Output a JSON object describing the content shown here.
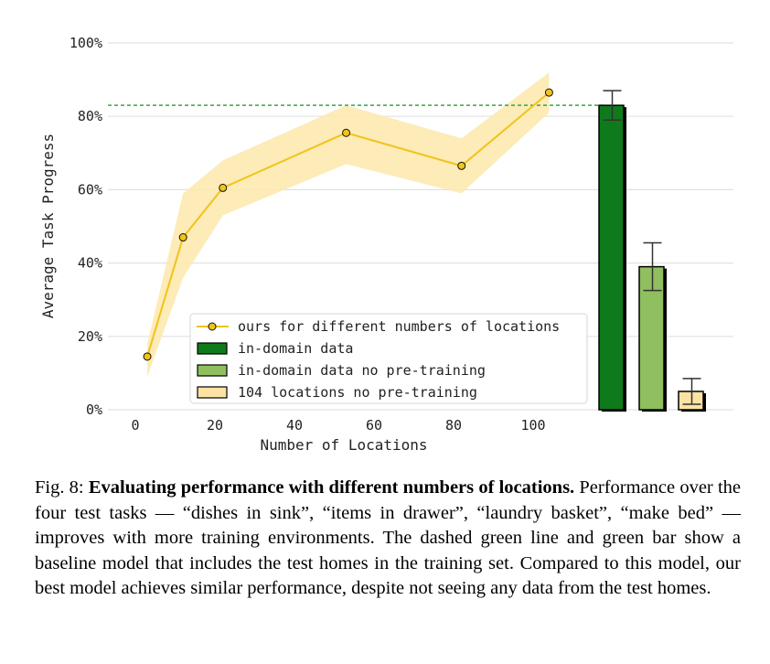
{
  "chart_data": {
    "type": "line",
    "xlabel": "Number of Locations",
    "ylabel": "Average Task Progress",
    "xlim": [
      -4,
      114
    ],
    "ylim": [
      0,
      100
    ],
    "x_ticks": [
      "0",
      "20",
      "40",
      "60",
      "80",
      "100"
    ],
    "y_ticks": [
      "0%",
      "20%",
      "40%",
      "60%",
      "80%",
      "100%"
    ],
    "grid": true,
    "legend_position": "bottom-right",
    "line_series": {
      "name": "ours for different numbers of locations",
      "color": "#f0c419",
      "band_color": "#fde9b0",
      "x": [
        3,
        12,
        22,
        53,
        82,
        104
      ],
      "y": [
        14.5,
        47,
        60.5,
        75.5,
        66.5,
        86.5
      ],
      "lower": [
        9,
        36,
        53,
        67,
        59,
        81
      ],
      "upper": [
        18,
        59,
        68,
        83,
        74,
        92
      ]
    },
    "baseline_line": {
      "y": 83,
      "color": "#2eaa3e"
    },
    "bar_series": [
      {
        "name": "in-domain data",
        "value": 83,
        "err_low": 79,
        "err_high": 87,
        "color": "#0f7a1c"
      },
      {
        "name": "in-domain data no pre-training",
        "value": 39,
        "err_low": 32.5,
        "err_high": 45.5,
        "color": "#8fbf5e"
      },
      {
        "name": "104 locations no pre-training",
        "value": 5,
        "err_low": 1.5,
        "err_high": 8.5,
        "color": "#fce3a4"
      }
    ]
  },
  "caption": {
    "label": "Fig. 8:",
    "title": "Evaluating performance with different numbers of locations.",
    "body": "Performance over the four test tasks — “dishes in sink”, “items in drawer”, “laundry basket”, “make bed” — improves with more training environments. The dashed green line and green bar show a baseline model that includes the test homes in the training set. Compared to this model, our best model achieves similar performance, despite not seeing any data from the test homes."
  }
}
